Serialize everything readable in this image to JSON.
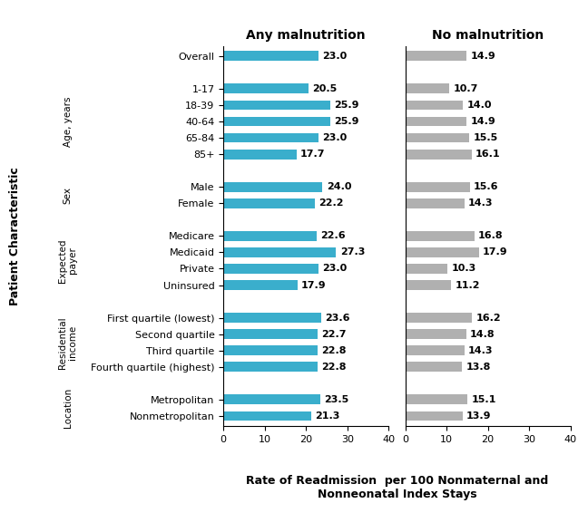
{
  "chart_data": [
    {
      "type": "bar",
      "orientation": "horizontal",
      "title": "Any malnutrition",
      "categories": [
        "Overall",
        null,
        "1-17",
        "18-39",
        "40-64",
        "65-84",
        "85+",
        null,
        "Male",
        "Female",
        null,
        "Medicare",
        "Medicaid",
        "Private",
        "Uninsured",
        null,
        "First quartile (lowest)",
        "Second quartile",
        "Third quartile",
        "Fourth quartile (highest)",
        null,
        "Metropolitan",
        "Nonmetropolitan"
      ],
      "values": [
        23.0,
        null,
        20.5,
        25.9,
        25.9,
        23.0,
        17.7,
        null,
        24.0,
        22.2,
        null,
        22.6,
        27.3,
        23.0,
        17.9,
        null,
        23.6,
        22.7,
        22.8,
        22.8,
        null,
        23.5,
        21.3
      ],
      "value_labels": [
        "23.0",
        null,
        "20.5",
        "25.9",
        "25.9",
        "23.0",
        "17.7",
        null,
        "24.0",
        "22.2",
        null,
        "22.6",
        "27.3",
        "23.0",
        "17.9",
        null,
        "23.6",
        "22.7",
        "22.8",
        "22.8",
        null,
        "23.5",
        "21.3"
      ],
      "color": "#3aaecc",
      "xlim": [
        0,
        40
      ],
      "xticks": [
        0,
        10,
        20,
        30,
        40
      ],
      "data_labels": true,
      "xlabel": "Rate of Readmission  per 100 Nonmaternal and\nNonneonatal Index Stays",
      "ylabel": "Patient Characteristic",
      "annotations": [
        {
          "text": "Age, years",
          "from": "1-17",
          "to": "85+"
        },
        {
          "text": "Sex",
          "from": "Male",
          "to": "Female"
        },
        {
          "text": "Expected\npayer",
          "from": "Medicare",
          "to": "Uninsured"
        },
        {
          "text": "Residential\nincome",
          "from": "First quartile (lowest)",
          "to": "Fourth quartile (highest)"
        },
        {
          "text": "Location",
          "from": "Metropolitan",
          "to": "Nonmetropolitan"
        }
      ]
    },
    {
      "type": "bar",
      "orientation": "horizontal",
      "title": "No malnutrition",
      "categories": [
        "Overall",
        null,
        "1-17",
        "18-39",
        "40-64",
        "65-84",
        "85+",
        null,
        "Male",
        "Female",
        null,
        "Medicare",
        "Medicaid",
        "Private",
        "Uninsured",
        null,
        "First quartile (lowest)",
        "Second quartile",
        "Third quartile",
        "Fourth quartile (highest)",
        null,
        "Metropolitan",
        "Nonmetropolitan"
      ],
      "values": [
        14.9,
        null,
        10.7,
        14.0,
        14.9,
        15.5,
        16.1,
        null,
        15.6,
        14.3,
        null,
        16.8,
        17.9,
        10.3,
        11.2,
        null,
        16.2,
        14.8,
        14.3,
        13.8,
        null,
        15.1,
        13.9
      ],
      "value_labels": [
        "14.9",
        null,
        "10.7",
        "14.0",
        "14.9",
        "15.5",
        "16.1",
        null,
        "15.6",
        "14.3",
        null,
        "16.8",
        "17.9",
        "10.3",
        "11.2",
        null,
        "16.2",
        "14.8",
        "14.3",
        "13.8",
        null,
        "15.1",
        "13.9"
      ],
      "color": "#b0b0b0",
      "xlim": [
        0,
        40
      ],
      "xticks": [
        0,
        10,
        20,
        30,
        40
      ],
      "data_labels": true,
      "tick_labels": "x"
    }
  ]
}
